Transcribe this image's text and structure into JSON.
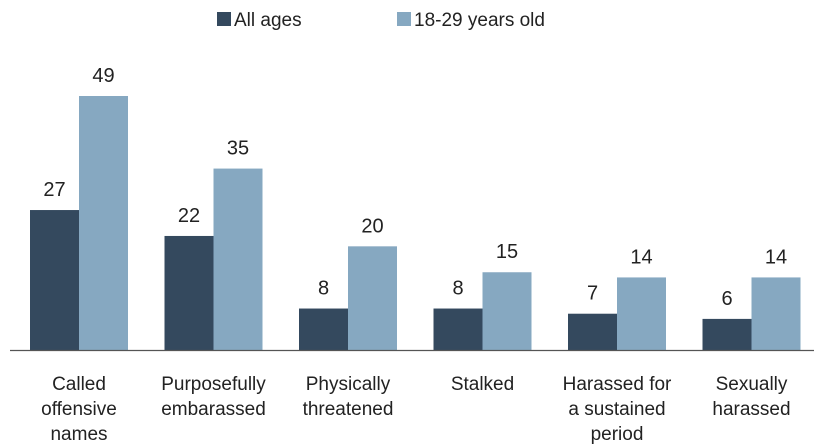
{
  "chart_data": {
    "type": "bar",
    "categories": [
      [
        "Called",
        "offensive",
        "names"
      ],
      [
        "Purposefully",
        "embarassed"
      ],
      [
        "Physically",
        "threatened"
      ],
      [
        "Stalked"
      ],
      [
        "Harassed for",
        "a sustained",
        "period"
      ],
      [
        "Sexually",
        "harassed"
      ]
    ],
    "series": [
      {
        "name": "All ages",
        "color": "#34495e",
        "values": [
          27,
          22,
          8,
          8,
          7,
          6
        ]
      },
      {
        "name": "18-29 years old",
        "color": "#86a8c1",
        "values": [
          49,
          35,
          20,
          15,
          14,
          14
        ]
      }
    ],
    "ylim": [
      0,
      49
    ],
    "grid": false,
    "legend": "top-center"
  }
}
